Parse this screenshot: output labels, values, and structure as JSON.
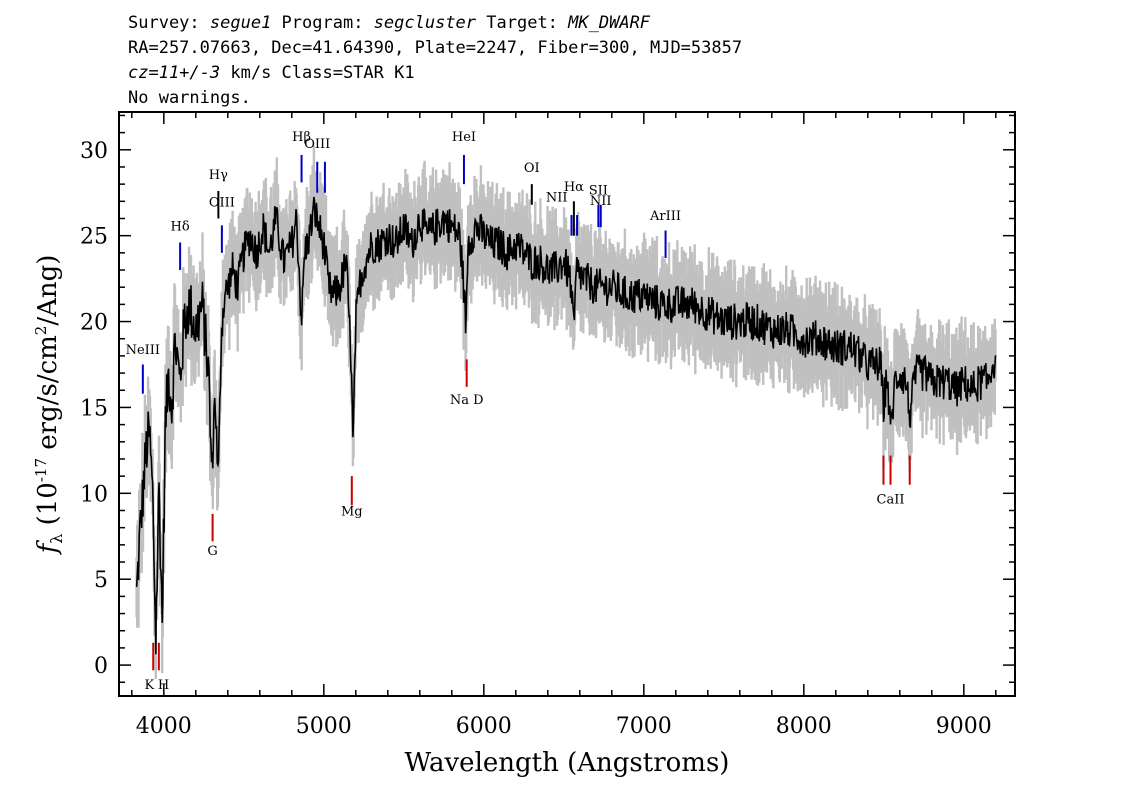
{
  "header": {
    "line1": [
      {
        "text": "Survey: ",
        "italic": false
      },
      {
        "text": "segue1",
        "italic": true
      },
      {
        "text": " Program: ",
        "italic": false
      },
      {
        "text": "segcluster",
        "italic": true
      },
      {
        "text": " Target: ",
        "italic": false
      },
      {
        "text": "MK_DWARF",
        "italic": true
      }
    ],
    "line2": "RA=257.07663, Dec=41.64390, Plate=2247, Fiber=300, MJD=53857",
    "line3": [
      {
        "text": "cz=11+/-3",
        "italic": true
      },
      {
        "text": " km/s Class=STAR K1",
        "italic": false
      }
    ],
    "line4": "No warnings."
  },
  "chart_data": {
    "type": "line",
    "xlabel": "Wavelength (Angstroms)",
    "ylabel": "f_λ (10^-17 erg/s/cm^2/Ang)",
    "xlim": [
      3720,
      9320
    ],
    "ylim": [
      -1.8,
      32.2
    ],
    "xticks": [
      4000,
      5000,
      6000,
      7000,
      8000,
      9000
    ],
    "yticks": [
      0,
      5,
      10,
      15,
      20,
      25,
      30
    ],
    "series": [
      {
        "color": "#000000",
        "x": [
          3830,
          3850,
          3870,
          3890,
          3910,
          3930,
          3950,
          3970,
          3990,
          4010,
          4030,
          4050,
          4070,
          4100,
          4130,
          4160,
          4200,
          4240,
          4280,
          4300,
          4320,
          4340,
          4360,
          4380,
          4400,
          4430,
          4460,
          4500,
          4540,
          4580,
          4620,
          4660,
          4700,
          4750,
          4800,
          4830,
          4861,
          4880,
          4910,
          4940,
          4970,
          5000,
          5030,
          5060,
          5100,
          5140,
          5170,
          5183,
          5200,
          5230,
          5260,
          5300,
          5350,
          5400,
          5450,
          5500,
          5550,
          5600,
          5650,
          5700,
          5750,
          5800,
          5850,
          5875,
          5890,
          5900,
          5950,
          6000,
          6050,
          6100,
          6150,
          6200,
          6250,
          6300,
          6350,
          6400,
          6450,
          6500,
          6540,
          6563,
          6580,
          6620,
          6700,
          6800,
          6900,
          7000,
          7100,
          7200,
          7300,
          7400,
          7500,
          7600,
          7700,
          7800,
          7900,
          8000,
          8100,
          8200,
          8300,
          8400,
          8480,
          8498,
          8520,
          8542,
          8570,
          8600,
          8640,
          8662,
          8700,
          8750,
          8800,
          8850,
          8900,
          8950,
          9000,
          9050,
          9100,
          9150,
          9180,
          9200
        ],
        "y": [
          4.0,
          7.5,
          10.0,
          12.5,
          13.5,
          10.0,
          1.5,
          10.5,
          2.5,
          14.0,
          17.0,
          15.0,
          19.0,
          16.5,
          20.0,
          21.0,
          19.5,
          21.0,
          17.0,
          11.0,
          16.0,
          10.5,
          19.5,
          21.5,
          22.0,
          23.0,
          22.0,
          24.0,
          25.0,
          24.0,
          25.5,
          24.0,
          26.0,
          23.5,
          24.5,
          26.0,
          20.0,
          24.0,
          25.0,
          26.5,
          25.5,
          24.5,
          22.0,
          21.5,
          22.0,
          23.5,
          18.0,
          12.5,
          20.0,
          22.5,
          23.5,
          24.5,
          24.5,
          25.0,
          24.5,
          25.5,
          24.5,
          26.0,
          25.0,
          25.5,
          26.0,
          25.5,
          25.0,
          22.0,
          19.5,
          24.5,
          25.5,
          25.0,
          24.5,
          24.5,
          24.0,
          24.5,
          24.0,
          23.5,
          23.5,
          23.0,
          23.0,
          23.5,
          22.5,
          19.5,
          23.0,
          22.5,
          22.0,
          22.0,
          21.5,
          21.5,
          21.0,
          21.0,
          21.0,
          20.5,
          20.0,
          20.0,
          20.0,
          19.5,
          19.5,
          19.0,
          19.0,
          18.5,
          18.5,
          17.5,
          17.5,
          15.0,
          17.0,
          13.5,
          16.5,
          17.0,
          16.5,
          14.5,
          17.0,
          17.0,
          16.5,
          16.5,
          16.5,
          16.0,
          16.5,
          16.0,
          16.5,
          16.5,
          17.5,
          18.0
        ]
      }
    ],
    "error_band": {
      "color": "#c0c0c0",
      "note": "grey noise envelope around the flux"
    },
    "lines": [
      {
        "label": "NeIII",
        "x": 3869,
        "label_y": 18.1,
        "y0": 17.5,
        "y1": 15.8,
        "color": "#0000cc",
        "anchor": "above"
      },
      {
        "label": "Hδ",
        "x": 4102,
        "label_y": 25.3,
        "y0": 24.6,
        "y1": 23.0,
        "color": "#0000cc",
        "anchor": "above"
      },
      {
        "label": "Hγ",
        "x": 4341,
        "label_y": 28.3,
        "y0": 27.6,
        "y1": 26.0,
        "color": "#000000",
        "anchor": "above"
      },
      {
        "label": "OIII",
        "x": 4363,
        "label_y": 26.7,
        "y0": 25.6,
        "y1": 24.0,
        "color": "#0000cc",
        "anchor": "above"
      },
      {
        "label": "Hβ",
        "x": 4861,
        "label_y": 30.5,
        "y0": 29.7,
        "y1": 28.1,
        "color": "#0000cc",
        "anchor": "above"
      },
      {
        "label": "OIII",
        "x": 4959,
        "label_y": 30.1,
        "y0": 29.3,
        "y1": 27.5,
        "color": "#0000cc",
        "anchor": "above"
      },
      {
        "label": "",
        "x": 5007,
        "label_y": 0,
        "y0": 29.3,
        "y1": 27.5,
        "color": "#0000cc",
        "anchor": "none"
      },
      {
        "label": "HeI",
        "x": 5876,
        "label_y": 30.5,
        "y0": 29.7,
        "y1": 28.0,
        "color": "#0000cc",
        "anchor": "above"
      },
      {
        "label": "OI",
        "x": 6300,
        "label_y": 28.7,
        "y0": 28.0,
        "y1": 26.8,
        "color": "#000000",
        "anchor": "above"
      },
      {
        "label": "NII",
        "x": 6548,
        "label_y": 27.0,
        "y0": 26.2,
        "y1": 25.0,
        "color": "#0000cc",
        "anchor": "left"
      },
      {
        "label": "Hα",
        "x": 6563,
        "label_y": 27.6,
        "y0": 27.0,
        "y1": 25.0,
        "color": "#000000",
        "anchor": "above"
      },
      {
        "label": "",
        "x": 6583,
        "label_y": 0,
        "y0": 26.2,
        "y1": 25.0,
        "color": "#0000cc",
        "anchor": "none"
      },
      {
        "label": "SII",
        "x": 6716,
        "label_y": 27.4,
        "y0": 26.8,
        "y1": 25.5,
        "color": "#0000cc",
        "anchor": "above"
      },
      {
        "label": "NII",
        "x": 6731,
        "label_y": 26.8,
        "y0": 26.8,
        "y1": 25.5,
        "color": "#0000cc",
        "anchor": "none"
      },
      {
        "label": "ArIII",
        "x": 7136,
        "label_y": 25.9,
        "y0": 25.3,
        "y1": 23.7,
        "color": "#0000cc",
        "anchor": "above"
      },
      {
        "label": "Na D",
        "x": 5893,
        "label_y": 15.2,
        "y0": 17.8,
        "y1": 16.2,
        "color": "#cc0000",
        "anchor": "below"
      },
      {
        "label": "Mg",
        "x": 5175,
        "label_y": 8.7,
        "y0": 11.0,
        "y1": 9.3,
        "color": "#cc0000",
        "anchor": "below"
      },
      {
        "label": "G",
        "x": 4305,
        "label_y": 6.4,
        "y0": 8.8,
        "y1": 7.2,
        "color": "#cc0000",
        "anchor": "below"
      },
      {
        "label": "K",
        "x": 3934,
        "label_y": -1.4,
        "y0": 1.3,
        "y1": -0.3,
        "color": "#cc0000",
        "anchor": "below-left"
      },
      {
        "label": "H",
        "x": 3969,
        "label_y": -1.4,
        "y0": 1.3,
        "y1": -0.3,
        "color": "#cc0000",
        "anchor": "below-right"
      },
      {
        "label": "CaII",
        "x": 8542,
        "label_y": 9.4,
        "y0": 12.2,
        "y1": 10.5,
        "color": "#cc0000",
        "anchor": "below"
      },
      {
        "label": "",
        "x": 8498,
        "label_y": 0,
        "y0": 12.2,
        "y1": 10.5,
        "color": "#cc0000",
        "anchor": "none"
      },
      {
        "label": "",
        "x": 8662,
        "label_y": 0,
        "y0": 12.2,
        "y1": 10.5,
        "color": "#cc0000",
        "anchor": "none"
      }
    ]
  }
}
